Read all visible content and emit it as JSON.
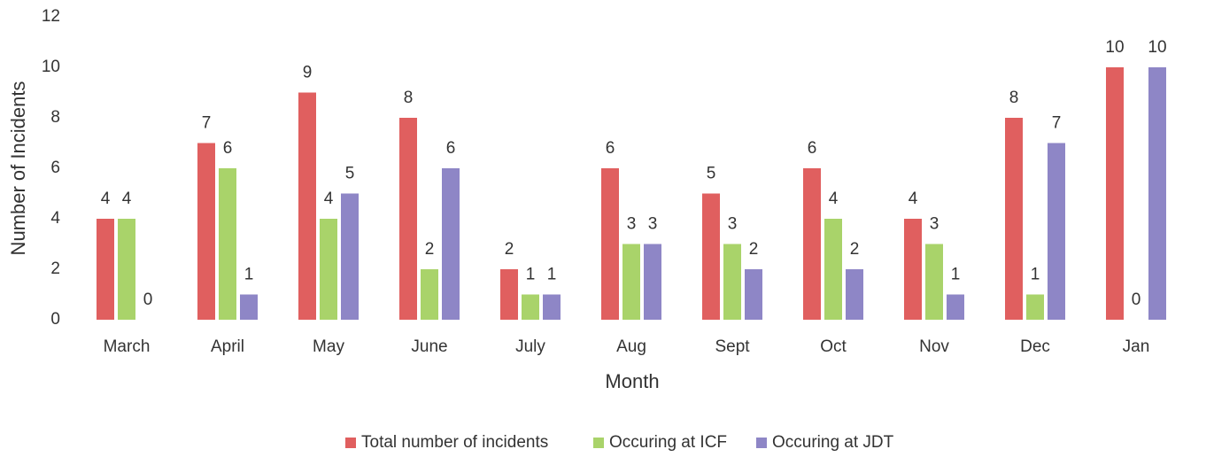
{
  "chart_data": {
    "type": "bar",
    "x_label": "Month",
    "y_label": "Number of Incidents",
    "categories": [
      "March",
      "April",
      "May",
      "June",
      "July",
      "Aug",
      "Sept",
      "Oct",
      "Nov",
      "Dec",
      "Jan"
    ],
    "series": [
      {
        "name": "Total number of incidents",
        "color": "#e05f5f",
        "values": [
          4,
          7,
          9,
          8,
          2,
          6,
          5,
          6,
          4,
          8,
          10
        ]
      },
      {
        "name": "Occuring at ICF",
        "color": "#a9d36a",
        "values": [
          4,
          6,
          4,
          2,
          1,
          3,
          3,
          4,
          3,
          1,
          0
        ]
      },
      {
        "name": "Occuring at JDT",
        "color": "#8e86c6",
        "values": [
          0,
          1,
          5,
          6,
          1,
          3,
          2,
          2,
          1,
          7,
          10
        ]
      }
    ],
    "ylim": [
      0,
      12
    ],
    "yticks": [
      0,
      2,
      4,
      6,
      8,
      10,
      12
    ],
    "grid": false,
    "legend": "bottom"
  }
}
